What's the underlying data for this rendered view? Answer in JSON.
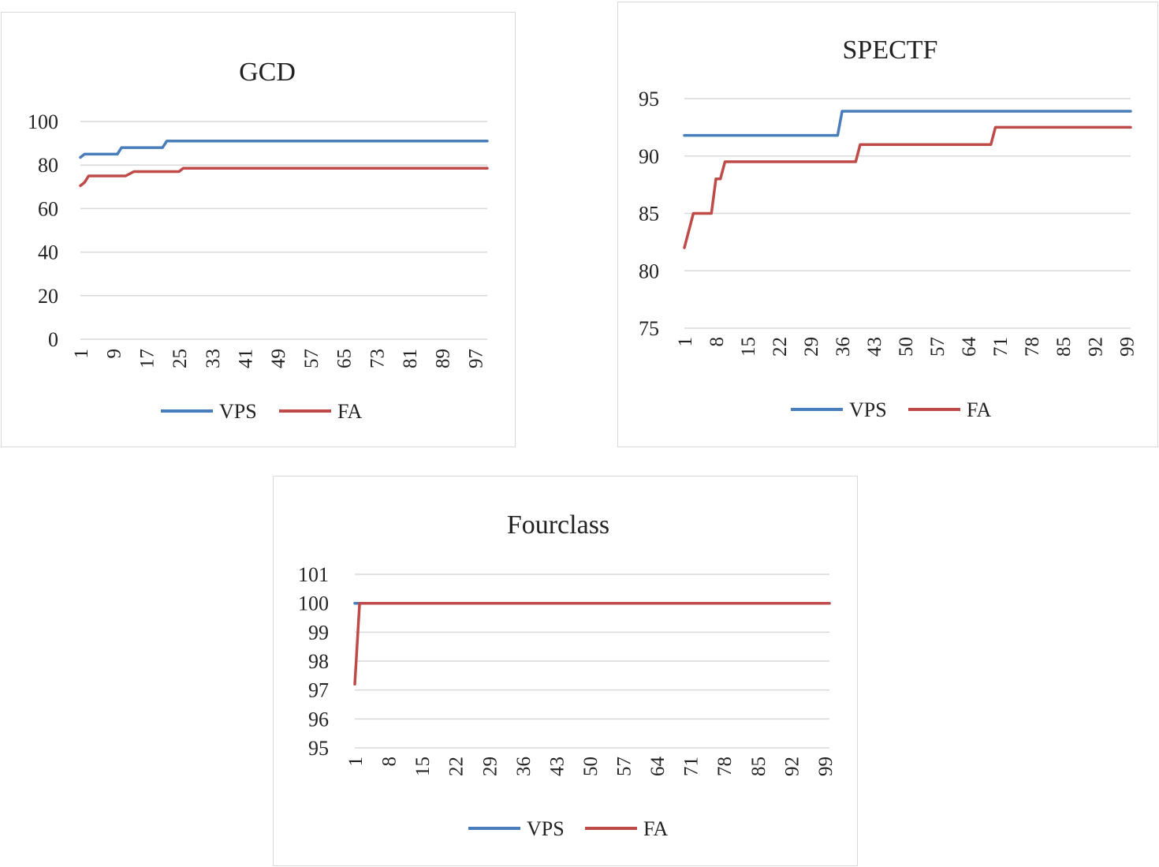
{
  "chart_data": [
    {
      "type": "line",
      "title": "GCD",
      "xlabel": "",
      "ylabel": "",
      "ylim": [
        0,
        100
      ],
      "yticks": [
        "0",
        "20",
        "40",
        "60",
        "80",
        "100"
      ],
      "xlim": [
        1,
        100
      ],
      "xticks": [
        "1",
        "9",
        "17",
        "25",
        "33",
        "41",
        "49",
        "57",
        "65",
        "73",
        "81",
        "89",
        "97"
      ],
      "legend_position": "bottom",
      "grid": true,
      "series": [
        {
          "name": "VPS",
          "color": "#4a7ebb",
          "points": [
            [
              1,
              83.5
            ],
            [
              2,
              85
            ],
            [
              10,
              85
            ],
            [
              11,
              88
            ],
            [
              21,
              88
            ],
            [
              22,
              91
            ],
            [
              100,
              91
            ]
          ]
        },
        {
          "name": "FA",
          "color": "#be4b48",
          "points": [
            [
              1,
              70.5
            ],
            [
              2,
              72
            ],
            [
              3,
              75
            ],
            [
              12,
              75
            ],
            [
              14,
              77
            ],
            [
              25,
              77
            ],
            [
              26,
              78.5
            ],
            [
              100,
              78.5
            ]
          ]
        }
      ]
    },
    {
      "type": "line",
      "title": "SPECTF",
      "xlabel": "",
      "ylabel": "",
      "ylim": [
        75,
        95
      ],
      "yticks": [
        "75",
        "80",
        "85",
        "90",
        "95"
      ],
      "xlim": [
        1,
        100
      ],
      "xticks": [
        "1",
        "8",
        "15",
        "22",
        "29",
        "36",
        "43",
        "50",
        "57",
        "64",
        "71",
        "78",
        "85",
        "92",
        "99"
      ],
      "legend_position": "bottom",
      "grid": true,
      "series": [
        {
          "name": "VPS",
          "color": "#4a7ebb",
          "points": [
            [
              1,
              91.8
            ],
            [
              35,
              91.8
            ],
            [
              36,
              93.9
            ],
            [
              100,
              93.9
            ]
          ]
        },
        {
          "name": "FA",
          "color": "#be4b48",
          "points": [
            [
              1,
              82
            ],
            [
              3,
              85
            ],
            [
              7,
              85
            ],
            [
              8,
              88
            ],
            [
              9,
              88
            ],
            [
              10,
              89.5
            ],
            [
              39,
              89.5
            ],
            [
              40,
              91
            ],
            [
              69,
              91
            ],
            [
              70,
              92.5
            ],
            [
              100,
              92.5
            ]
          ]
        }
      ]
    },
    {
      "type": "line",
      "title": "Fourclass",
      "xlabel": "",
      "ylabel": "",
      "ylim": [
        95,
        101
      ],
      "yticks": [
        "95",
        "96",
        "97",
        "98",
        "99",
        "100",
        "101"
      ],
      "xlim": [
        1,
        100
      ],
      "xticks": [
        "1",
        "8",
        "15",
        "22",
        "29",
        "36",
        "43",
        "50",
        "57",
        "64",
        "71",
        "78",
        "85",
        "92",
        "99"
      ],
      "legend_position": "bottom",
      "grid": true,
      "series": [
        {
          "name": "VPS",
          "color": "#4a7ebb",
          "points": [
            [
              1,
              100
            ],
            [
              100,
              100
            ]
          ]
        },
        {
          "name": "FA",
          "color": "#be4b48",
          "points": [
            [
              1,
              97.2
            ],
            [
              2,
              100
            ],
            [
              100,
              100
            ]
          ]
        }
      ]
    }
  ]
}
